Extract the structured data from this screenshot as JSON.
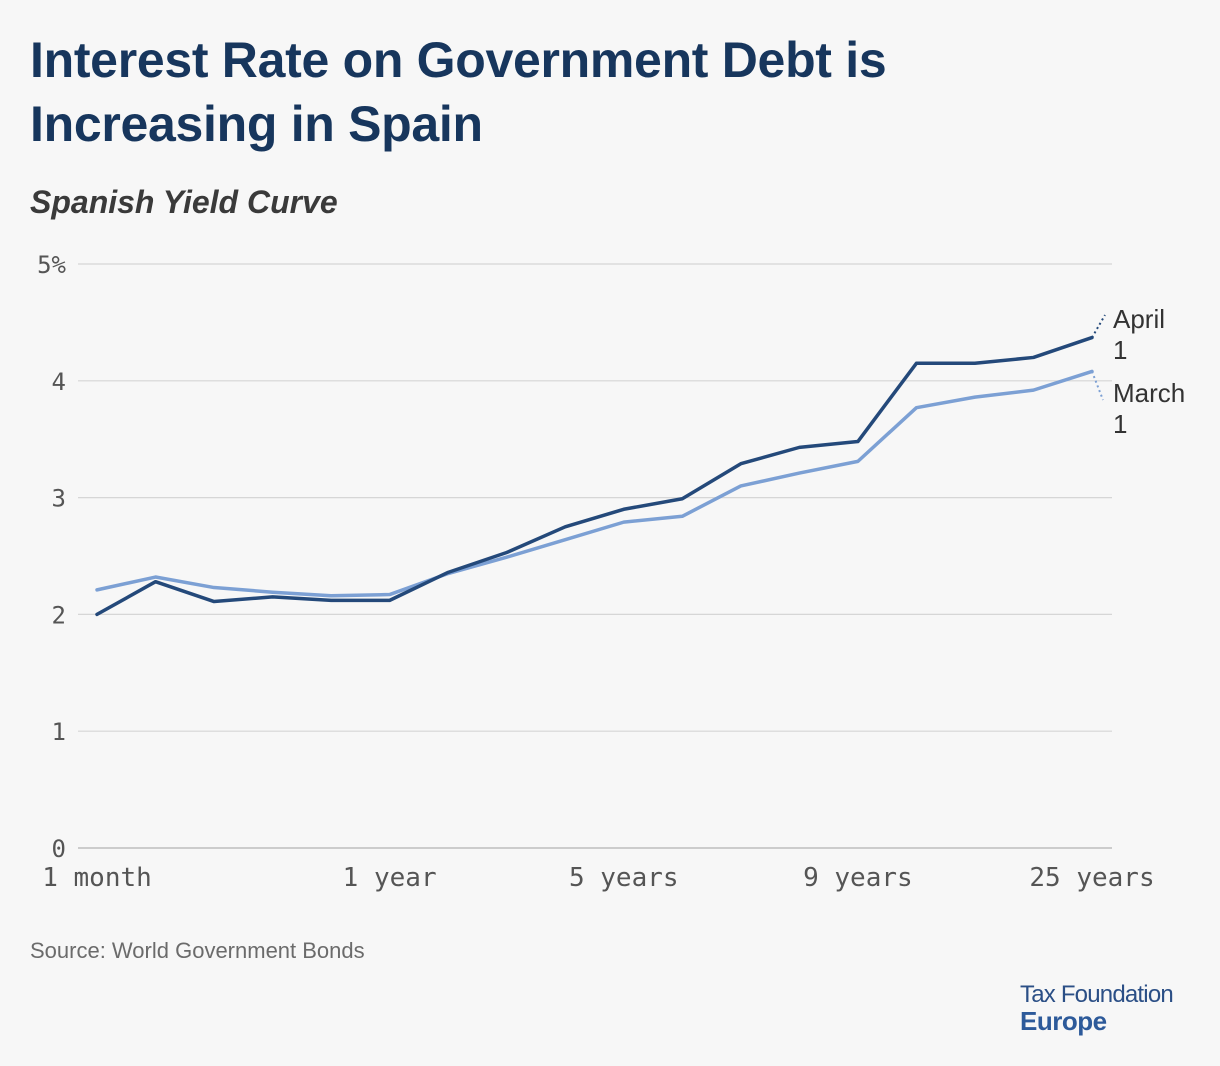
{
  "title": "Interest Rate on Government Debt is Increasing in Spain",
  "subtitle": "Spanish Yield Curve",
  "source": "Source: World Government Bonds",
  "brand": {
    "line1": "Tax Foundation",
    "line2": "Europe"
  },
  "colors": {
    "april": "#24497a",
    "march": "#7ca0d4",
    "grid": "#d6d6d6",
    "title": "#17365d"
  },
  "chart_data": {
    "type": "line",
    "y_tick_labels": [
      "0",
      "1",
      "2",
      "3",
      "4",
      "5%"
    ],
    "ylim": [
      0,
      5
    ],
    "x_tick_labels": [
      "1 month",
      "1 year",
      "5 years",
      "9 years",
      "25 years"
    ],
    "x_tick_positions": [
      0,
      5,
      9,
      13,
      17
    ],
    "grid": true,
    "legend": "line-end labels",
    "series": [
      {
        "name": "April 1",
        "color": "#24497a",
        "values": [
          2.0,
          2.28,
          2.11,
          2.15,
          2.12,
          2.12,
          2.36,
          2.53,
          2.75,
          2.9,
          2.99,
          3.29,
          3.43,
          3.48,
          4.15,
          4.15,
          4.2,
          4.37
        ]
      },
      {
        "name": "March 1",
        "color": "#7ca0d4",
        "values": [
          2.21,
          2.32,
          2.23,
          2.19,
          2.16,
          2.17,
          2.35,
          2.49,
          2.64,
          2.79,
          2.84,
          3.1,
          3.21,
          3.31,
          3.77,
          3.86,
          3.92,
          4.08
        ]
      }
    ]
  }
}
